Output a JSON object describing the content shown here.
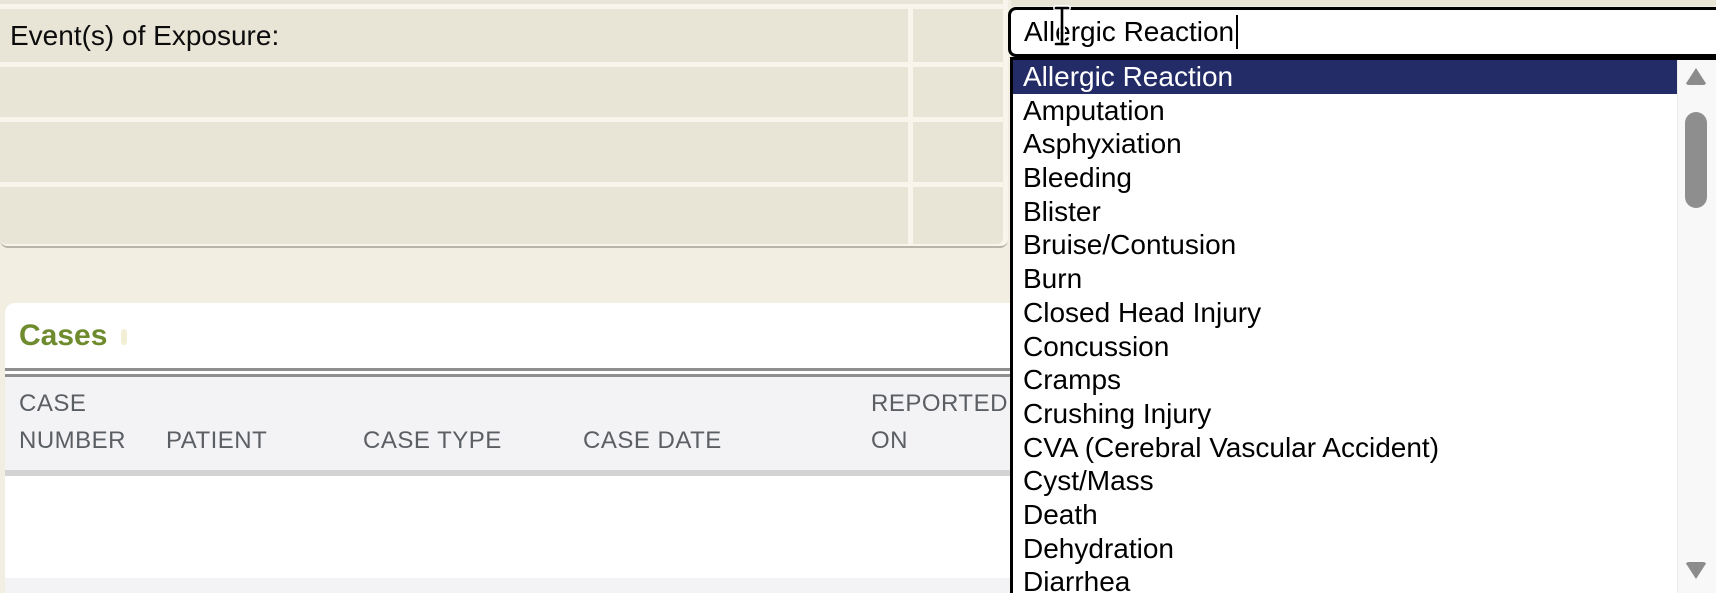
{
  "form_panel": {
    "exposure_label": "Event(s) of Exposure:",
    "empty_row_count": 3
  },
  "exposure_combobox": {
    "value": "Allergic Reaction",
    "selected_option": "Allergic Reaction",
    "options": [
      "Allergic Reaction",
      "Amputation",
      "Asphyxiation",
      "Bleeding",
      "Blister",
      "Bruise/Contusion",
      "Burn",
      "Closed Head Injury",
      "Concussion",
      "Cramps",
      "Crushing Injury",
      "CVA (Cerebral Vascular Accident)",
      "Cyst/Mass",
      "Death",
      "Dehydration",
      "Diarrhea"
    ],
    "highlight_color": "#232c66",
    "scrollbar": {
      "up_icon": "triangle-up",
      "down_icon": "triangle-down",
      "thumb_color": "#8e8e8e"
    }
  },
  "cursor": {
    "type": "i-beam-text-cursor"
  },
  "cases_section": {
    "title": "Cases",
    "title_color": "#6e8b2e",
    "table": {
      "columns": [
        "CASE NUMBER",
        "PATIENT",
        "CASE TYPE",
        "CASE DATE",
        "REPORTED ON"
      ],
      "rows": []
    }
  },
  "colors": {
    "page_background": "#f2eee2",
    "form_row": "#e8e4d6",
    "row_separator": "#f8f5ec",
    "header_band": "#f3f3f5",
    "header_text": "#5b5e63",
    "selection_navy": "#232c66",
    "cases_green": "#6e8b2e"
  }
}
